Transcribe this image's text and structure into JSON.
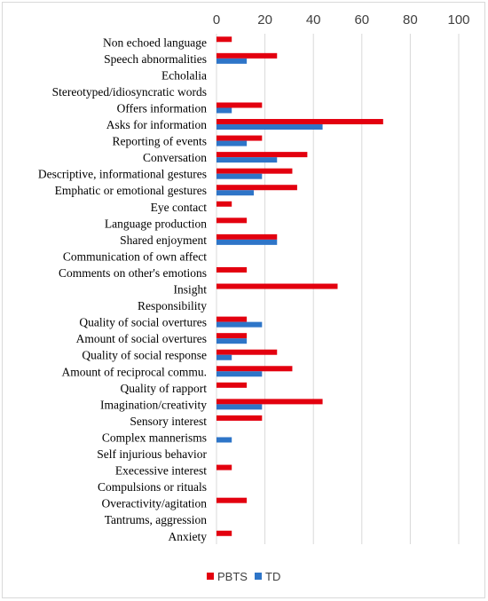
{
  "chart_data": {
    "type": "bar",
    "orientation": "horizontal",
    "xlim": [
      0,
      100
    ],
    "x_ticks": [
      "0",
      "20",
      "40",
      "60",
      "80",
      "100"
    ],
    "x_axis_position": "top",
    "grid": true,
    "legend_position": "bottom",
    "categories": [
      "Non echoed language",
      "Speech abnormalities",
      "Echolalia",
      "Stereotyped/idiosyncratic words",
      "Offers information",
      "Asks for information",
      "Reporting of events",
      "Conversation",
      "Descriptive, informational gestures",
      "Emphatic or emotional gestures",
      "Eye contact",
      "Language production",
      "Shared enjoyment",
      "Communication of own affect",
      "Comments on other's emotions",
      "Insight",
      "Responsibility",
      "Quality of social overtures",
      "Amount of social overtures",
      "Quality of social response",
      "Amount of reciprocal commu.",
      "Quality of rapport",
      "Imagination/creativity",
      "Sensory interest",
      "Complex mannerisms",
      "Self injurious behavior",
      "Execessive interest",
      "Compulsions or rituals",
      "Overactivity/agitation",
      "Tantrums, aggression",
      "Anxiety"
    ],
    "series": [
      {
        "name": "PBTS",
        "color": "#e3000f",
        "values": [
          6.3,
          25,
          0,
          0,
          18.8,
          68.8,
          18.8,
          37.5,
          31.3,
          33.3,
          6.3,
          12.5,
          25,
          0,
          12.5,
          50,
          0,
          12.5,
          12.5,
          25,
          31.3,
          12.5,
          43.8,
          18.8,
          0,
          0,
          6.3,
          0,
          12.5,
          0,
          6.3
        ]
      },
      {
        "name": "TD",
        "color": "#2e75c8",
        "values": [
          0,
          12.5,
          0,
          0,
          6.3,
          43.8,
          12.5,
          25,
          18.8,
          15.4,
          0,
          0,
          25,
          0,
          0,
          0,
          0,
          18.8,
          12.5,
          6.3,
          18.8,
          0,
          18.8,
          0,
          6.3,
          0,
          0,
          0,
          0,
          0,
          0
        ]
      }
    ]
  }
}
